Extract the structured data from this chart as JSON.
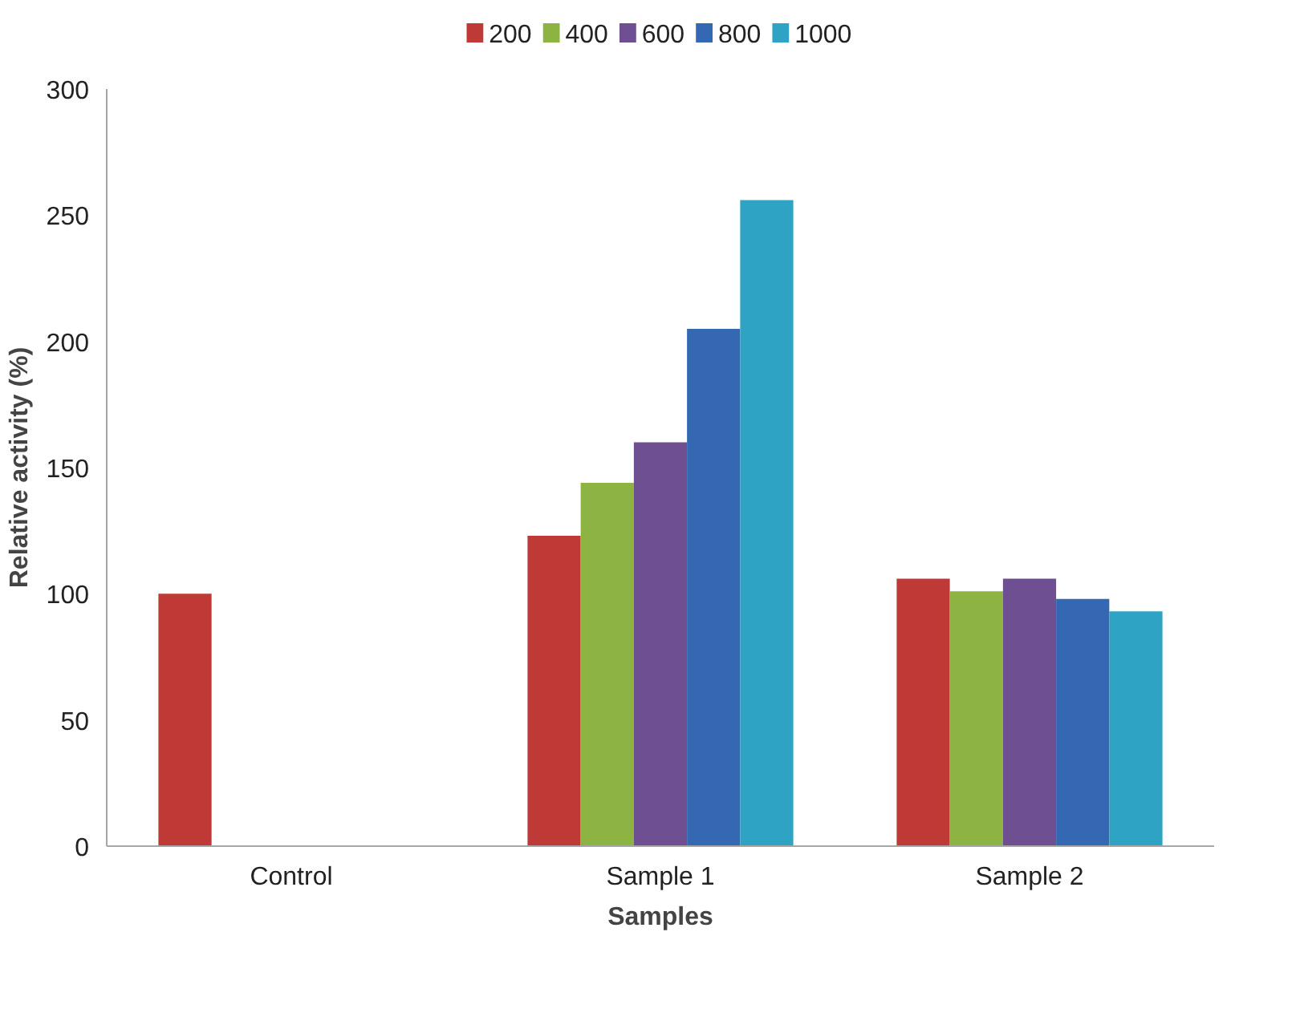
{
  "chart_data": {
    "type": "bar",
    "xlabel": "Samples",
    "ylabel": "Relative activity (%)",
    "categories": [
      "Control",
      "Sample 1",
      "Sample 2"
    ],
    "series": [
      {
        "name": "200",
        "color": "#bf3a37",
        "values": [
          100,
          123,
          106
        ]
      },
      {
        "name": "400",
        "color": "#8db343",
        "values": [
          null,
          144,
          101
        ]
      },
      {
        "name": "600",
        "color": "#6d4f92",
        "values": [
          null,
          160,
          106
        ]
      },
      {
        "name": "800",
        "color": "#3568b2",
        "values": [
          null,
          205,
          98
        ]
      },
      {
        "name": "1000",
        "color": "#2ea3c3",
        "values": [
          null,
          256,
          93
        ]
      }
    ],
    "ylim": [
      0,
      300
    ],
    "yticks": [
      0,
      50,
      100,
      150,
      200,
      250,
      300
    ],
    "grid": false,
    "legend": "top"
  }
}
